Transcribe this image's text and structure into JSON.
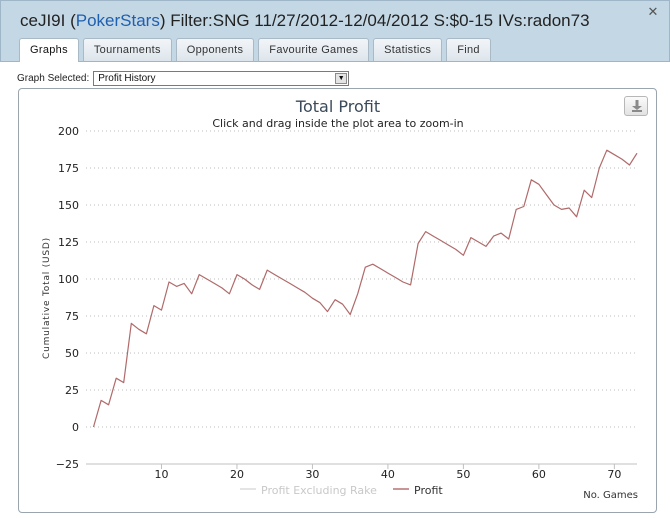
{
  "window": {
    "title_prefix": "ceJI9I (",
    "site": "PokerStars",
    "title_suffix": ") Filter:SNG 11/27/2012-12/04/2012 S:$0-15 IVs:radon73",
    "close_label": "✕"
  },
  "tabs": [
    {
      "label": "Graphs",
      "active": true
    },
    {
      "label": "Tournaments",
      "active": false
    },
    {
      "label": "Opponents",
      "active": false
    },
    {
      "label": "Favourite Games",
      "active": false
    },
    {
      "label": "Statistics",
      "active": false
    },
    {
      "label": "Find",
      "active": false
    }
  ],
  "graph_select": {
    "label": "Graph Selected:",
    "value": "Profit History"
  },
  "chart_data": {
    "type": "line",
    "title": "Total Profit",
    "subtitle": "Click and drag inside the plot area to zoom-in",
    "xlabel": "No. Games",
    "ylabel": "Cumulative Total (USD)",
    "xlim": [
      0,
      73
    ],
    "ylim": [
      -25,
      200
    ],
    "xticks": [
      10,
      20,
      30,
      40,
      50,
      60,
      70
    ],
    "yticks": [
      -25,
      0,
      25,
      50,
      75,
      100,
      125,
      150,
      175,
      200
    ],
    "grid": "horizontal-dotted",
    "legend": "bottom-center",
    "series": [
      {
        "name": "Profit Excluding Rake",
        "color": "#d8d8d8",
        "points": []
      },
      {
        "name": "Profit",
        "color": "#b06a6a",
        "points": [
          [
            1,
            0
          ],
          [
            2,
            18
          ],
          [
            3,
            15
          ],
          [
            4,
            33
          ],
          [
            5,
            30
          ],
          [
            6,
            70
          ],
          [
            7,
            66
          ],
          [
            8,
            63
          ],
          [
            9,
            82
          ],
          [
            10,
            79
          ],
          [
            11,
            98
          ],
          [
            12,
            95
          ],
          [
            13,
            97
          ],
          [
            14,
            90
          ],
          [
            15,
            103
          ],
          [
            16,
            100
          ],
          [
            17,
            97
          ],
          [
            18,
            94
          ],
          [
            19,
            90
          ],
          [
            20,
            103
          ],
          [
            21,
            100
          ],
          [
            22,
            96
          ],
          [
            23,
            93
          ],
          [
            24,
            106
          ],
          [
            25,
            103
          ],
          [
            26,
            100
          ],
          [
            27,
            97
          ],
          [
            28,
            94
          ],
          [
            29,
            91
          ],
          [
            30,
            87
          ],
          [
            31,
            84
          ],
          [
            32,
            78
          ],
          [
            33,
            86
          ],
          [
            34,
            83
          ],
          [
            35,
            76
          ],
          [
            36,
            90
          ],
          [
            37,
            108
          ],
          [
            38,
            110
          ],
          [
            39,
            107
          ],
          [
            40,
            104
          ],
          [
            41,
            101
          ],
          [
            42,
            98
          ],
          [
            43,
            96
          ],
          [
            44,
            124
          ],
          [
            45,
            132
          ],
          [
            46,
            129
          ],
          [
            47,
            126
          ],
          [
            48,
            123
          ],
          [
            49,
            120
          ],
          [
            50,
            116
          ],
          [
            51,
            128
          ],
          [
            52,
            125
          ],
          [
            53,
            122
          ],
          [
            54,
            129
          ],
          [
            55,
            131
          ],
          [
            56,
            127
          ],
          [
            57,
            147
          ],
          [
            58,
            149
          ],
          [
            59,
            167
          ],
          [
            60,
            164
          ],
          [
            61,
            157
          ],
          [
            62,
            150
          ],
          [
            63,
            147
          ],
          [
            64,
            148
          ],
          [
            65,
            142
          ],
          [
            66,
            160
          ],
          [
            67,
            155
          ],
          [
            68,
            175
          ],
          [
            69,
            187
          ],
          [
            70,
            184
          ],
          [
            71,
            181
          ],
          [
            72,
            177
          ],
          [
            73,
            185
          ]
        ]
      }
    ]
  }
}
